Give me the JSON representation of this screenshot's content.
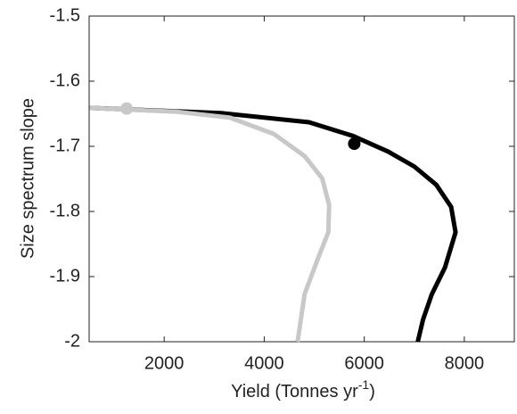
{
  "chart_data": {
    "type": "line",
    "xlabel": {
      "text": "Yield (Tonnes yr",
      "sup": "-1",
      "end": ")"
    },
    "ylabel": "Size spectrum slope",
    "xlim": [
      500,
      9000
    ],
    "xticks": [
      2000,
      4000,
      6000,
      8000
    ],
    "ylim": [
      -2,
      -1.5
    ],
    "yticks": [
      -1.5,
      -1.6,
      -1.7,
      -1.8,
      -1.9,
      -2
    ],
    "series": [
      {
        "color": "#000000",
        "x": [
          509,
          3140,
          4895,
          5772,
          6474,
          7000,
          7439,
          7737,
          7825,
          7614,
          7351,
          7175,
          7070
        ],
        "values": [
          -1.641,
          -1.649,
          -1.663,
          -1.684,
          -1.708,
          -1.731,
          -1.759,
          -1.793,
          -1.832,
          -1.886,
          -1.927,
          -1.966,
          -2.0
        ],
        "marker": {
          "x": 5800,
          "value": -1.696
        }
      },
      {
        "color": "#c8c8c8",
        "x": [
          509,
          2260,
          3316,
          4193,
          4807,
          5158,
          5298,
          5281,
          5070,
          4807,
          4667
        ],
        "values": [
          -1.641,
          -1.647,
          -1.656,
          -1.681,
          -1.715,
          -1.749,
          -1.79,
          -1.832,
          -1.873,
          -1.927,
          -2.0
        ],
        "marker": {
          "x": 1250,
          "value": -1.642
        }
      }
    ]
  }
}
